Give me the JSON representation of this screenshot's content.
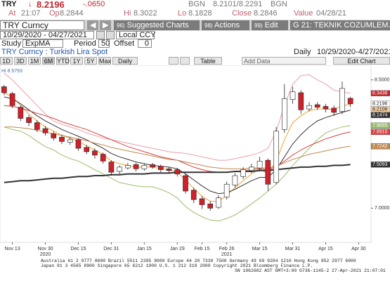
{
  "quote": {
    "ticker": "TRY",
    "last": "8.2196",
    "change": "-.0650",
    "bid_source": "BGN",
    "bid_ask": "8.2101/8.2291",
    "ask_source": "BGN",
    "time_label": "At",
    "time": "21:07",
    "open_label": "Op",
    "open": "8.2844",
    "high_label": "Hi",
    "high": "8.3022",
    "low_label": "Lo",
    "low": "8.1828",
    "close_label": "Close",
    "close": "8.2846",
    "value_label": "Value",
    "value_date": "04/28/21"
  },
  "toolbar": {
    "security": "TRY Curncy",
    "suggested": "Suggested Charts",
    "suggested_key": "96)",
    "actions": "Actions",
    "actions_key": "98)",
    "edit": "Edit",
    "edit_key": "99)",
    "launchpad": "G 21: TEKNIK COZUMLEM..."
  },
  "range": {
    "dates": "10/29/2020 - 04/27/2021",
    "currency": "Local CCY"
  },
  "study": {
    "label": "Study",
    "name": "ExpMA",
    "period_label": "Period",
    "period": "50",
    "offset_label": "Offset",
    "offset": "0"
  },
  "chart_header": {
    "title": "TRY Curncy : Turkish Lira Spot",
    "frequency": "Daily",
    "span": "10/29/2020-4/27/2021"
  },
  "buttons": [
    "1D",
    "3D",
    "1M",
    "6M",
    "YTD",
    "1Y",
    "5Y",
    "Max",
    "Daily"
  ],
  "tools": {
    "table": "Table",
    "add_data": "Add Data",
    "edit_chart": "Edit Chart"
  },
  "footer": [
    "Australia 61 2 9777 8600 Brazil 5511 2395 9000 Europe 44 20 7330 7500 Germany 49 69 9204 1210 Hong Kong 852 2977 6000",
    "Japan 81 3 4565 8900      Singapore 65 6212 1000      U.S. 1 212 318 2000      Copyright 2021 Bloomberg Finance L.P.",
    "SN 1062682 AST  GMT+3:00 G736-1145-2 27-Apr-2021 21:07:01"
  ],
  "chart_data": {
    "type": "candlestick",
    "annotation": "Hi 8.5793",
    "categories": [
      null,
      "Nov 13",
      null,
      null,
      null,
      "Nov 30",
      null,
      null,
      null,
      "Dec 15",
      null,
      null,
      null,
      "Dec 31",
      null,
      null,
      null,
      "Jan 15",
      null,
      null,
      null,
      "Jan 29",
      null,
      null,
      "Feb 15",
      null,
      null,
      "Feb 26",
      null,
      null,
      null,
      "Mar 15",
      null,
      null,
      null,
      "Mar 31",
      null,
      null,
      null,
      "Apr 15",
      null,
      null,
      null,
      "Apr 30",
      null
    ],
    "year_labels": [
      null,
      null,
      null,
      null,
      null,
      "2020",
      null,
      null,
      null,
      null,
      null,
      null,
      null,
      null,
      null,
      null,
      null,
      null,
      null,
      null,
      null,
      null,
      null,
      null,
      null,
      null,
      null,
      "2021",
      null,
      null,
      null,
      null,
      null,
      null,
      null,
      null,
      null,
      null,
      null,
      null,
      null,
      null,
      null,
      null,
      null
    ],
    "open": [
      8.42,
      8.34,
      8.18,
      8.06,
      8.0,
      7.93,
      7.87,
      7.83,
      7.77,
      7.8,
      7.71,
      7.67,
      7.63,
      7.54,
      7.43,
      7.47,
      7.51,
      7.46,
      7.51,
      7.49,
      7.46,
      7.45,
      7.38,
      7.21,
      7.11,
      7.05,
      7.01,
      7.13,
      7.27,
      7.37,
      7.44,
      7.47,
      7.56,
      7.3,
      7.92,
      8.27,
      8.35,
      8.16,
      8.21,
      8.19,
      8.17,
      8.13,
      8.2844,
      null,
      null
    ],
    "high": [
      8.44,
      8.36,
      8.2,
      8.09,
      8.03,
      7.96,
      7.9,
      7.86,
      7.83,
      7.82,
      7.74,
      7.7,
      7.65,
      7.56,
      7.5,
      7.53,
      7.53,
      7.52,
      7.53,
      7.51,
      7.48,
      7.47,
      7.4,
      7.24,
      7.14,
      7.08,
      7.15,
      7.31,
      7.41,
      7.48,
      7.52,
      7.6,
      7.58,
      7.95,
      8.45,
      8.42,
      8.38,
      8.24,
      8.24,
      8.22,
      8.2,
      8.48,
      8.3022,
      null,
      null
    ],
    "low": [
      8.32,
      8.17,
      8.02,
      7.96,
      7.89,
      7.85,
      7.79,
      7.75,
      7.74,
      7.67,
      7.63,
      7.58,
      7.52,
      7.38,
      7.4,
      7.45,
      7.43,
      7.44,
      7.46,
      7.42,
      7.41,
      7.37,
      7.17,
      7.06,
      6.99,
      6.97,
      6.99,
      7.1,
      7.24,
      7.34,
      7.41,
      7.44,
      7.2,
      7.28,
      7.88,
      8.22,
      8.1,
      8.13,
      8.15,
      8.12,
      8.08,
      8.1,
      8.1828,
      null,
      null
    ],
    "close": [
      8.35,
      8.2,
      8.05,
      8.0,
      7.92,
      7.88,
      7.82,
      7.78,
      7.8,
      7.7,
      7.66,
      7.62,
      7.55,
      7.42,
      7.48,
      7.5,
      7.46,
      7.5,
      7.48,
      7.45,
      7.44,
      7.4,
      7.2,
      7.1,
      7.04,
      7.0,
      7.12,
      7.28,
      7.38,
      7.45,
      7.48,
      7.55,
      7.28,
      7.9,
      8.28,
      8.36,
      8.15,
      8.2,
      8.18,
      8.16,
      8.12,
      8.4,
      8.2196,
      null,
      null
    ],
    "up_color": "#ffffff",
    "down_color": "#d0202a",
    "outline_color": "#222222",
    "lines": [
      {
        "color": "#e8a0a8",
        "width": 1,
        "values": [
          8.58,
          8.5,
          8.4,
          8.3,
          8.2,
          8.1,
          8.02,
          7.98,
          7.95,
          7.92,
          7.88,
          7.85,
          7.82,
          7.8,
          7.78,
          7.76,
          7.74,
          7.72,
          7.7,
          7.68,
          7.66,
          7.65,
          7.64,
          7.62,
          7.6,
          7.58,
          7.56,
          7.56,
          7.58,
          7.6,
          7.62,
          7.65,
          7.7,
          7.9,
          8.2,
          8.45,
          8.55,
          8.56,
          8.5,
          8.45,
          8.38,
          8.36,
          8.3438,
          null,
          null
        ]
      },
      {
        "color": "#9bbd6a",
        "width": 1,
        "values": [
          7.95,
          7.92,
          7.9,
          7.85,
          7.78,
          7.72,
          7.68,
          7.62,
          7.58,
          7.55,
          7.5,
          7.45,
          7.4,
          7.35,
          7.3,
          7.28,
          7.26,
          7.25,
          7.25,
          7.22,
          7.18,
          7.12,
          7.02,
          6.95,
          6.9,
          6.86,
          6.85,
          6.88,
          6.92,
          6.98,
          7.05,
          7.12,
          7.2,
          7.28,
          7.38,
          7.5,
          7.6,
          7.7,
          7.8,
          7.88,
          7.92,
          7.95,
          7.9655,
          null,
          null
        ]
      },
      {
        "color": "#f0a030",
        "width": 1,
        "values": [
          8.35,
          8.3,
          8.2,
          8.1,
          8.02,
          7.95,
          7.9,
          7.85,
          7.82,
          7.78,
          7.73,
          7.68,
          7.63,
          7.55,
          7.52,
          7.5,
          7.48,
          7.48,
          7.48,
          7.46,
          7.45,
          7.42,
          7.33,
          7.23,
          7.14,
          7.08,
          7.08,
          7.15,
          7.24,
          7.32,
          7.4,
          7.46,
          7.4,
          7.55,
          7.8,
          8.0,
          8.08,
          8.14,
          8.16,
          8.16,
          8.15,
          8.2,
          8.2106,
          null,
          null
        ]
      },
      {
        "color": "#333333",
        "width": 1,
        "values": [
          8.3,
          8.28,
          8.22,
          8.15,
          8.08,
          8.02,
          7.97,
          7.92,
          7.88,
          7.84,
          7.8,
          7.75,
          7.7,
          7.64,
          7.6,
          7.57,
          7.54,
          7.52,
          7.5,
          7.49,
          7.48,
          7.46,
          7.4,
          7.33,
          7.26,
          7.2,
          7.17,
          7.18,
          7.22,
          7.27,
          7.32,
          7.36,
          7.36,
          7.45,
          7.6,
          7.75,
          7.86,
          7.95,
          8.02,
          8.06,
          8.09,
          8.12,
          8.1474,
          null,
          null
        ]
      },
      {
        "color": "#d84040",
        "width": 1,
        "values": [
          8.2,
          8.19,
          8.17,
          8.14,
          8.11,
          8.08,
          8.05,
          8.01,
          7.98,
          7.95,
          7.92,
          7.88,
          7.84,
          7.8,
          7.76,
          7.72,
          7.69,
          7.66,
          7.63,
          7.6,
          7.58,
          7.56,
          7.52,
          7.48,
          7.45,
          7.43,
          7.42,
          7.42,
          7.43,
          7.44,
          7.45,
          7.46,
          7.45,
          7.48,
          7.55,
          7.62,
          7.68,
          7.73,
          7.77,
          7.81,
          7.84,
          7.87,
          7.891,
          null,
          null
        ]
      },
      {
        "color": "#c08850",
        "width": 1,
        "values": [
          7.95,
          7.95,
          7.94,
          7.93,
          7.91,
          7.89,
          7.87,
          7.85,
          7.83,
          7.81,
          7.79,
          7.76,
          7.74,
          7.71,
          7.69,
          7.67,
          7.65,
          7.63,
          7.61,
          7.59,
          7.57,
          7.56,
          7.54,
          7.52,
          7.5,
          7.48,
          7.47,
          7.46,
          7.46,
          7.46,
          7.47,
          7.47,
          7.47,
          7.49,
          7.53,
          7.57,
          7.6,
          7.63,
          7.65,
          7.67,
          7.69,
          7.71,
          7.7242,
          null,
          null
        ]
      },
      {
        "color": "#333333",
        "width": 2,
        "values": [
          7.3,
          7.31,
          7.32,
          7.32,
          7.33,
          7.34,
          7.35,
          7.35,
          7.36,
          7.37,
          7.37,
          7.38,
          7.38,
          7.39,
          7.39,
          7.4,
          7.4,
          7.4,
          7.41,
          7.41,
          7.41,
          7.42,
          7.42,
          7.42,
          7.42,
          7.42,
          7.42,
          7.42,
          7.43,
          7.43,
          7.43,
          7.44,
          7.44,
          7.45,
          7.46,
          7.47,
          7.48,
          7.48,
          7.49,
          7.49,
          7.5,
          7.5,
          7.5093,
          null,
          null
        ]
      }
    ],
    "price_tags": [
      {
        "value": 8.3438,
        "label": "8.3438",
        "color": "#c0282d",
        "text_color": "#ffffff"
      },
      {
        "value": 8.2196,
        "label": "8.2196",
        "color": "#ffffff",
        "text_color": "#222222"
      },
      {
        "value": 8.2106,
        "label": "8.2106",
        "color": "#f6d0a0",
        "text_color": "#222222"
      },
      {
        "value": 8.1474,
        "label": "8.1474",
        "color": "#333333",
        "text_color": "#ffffff"
      },
      {
        "value": 7.9655,
        "label": "7.9655",
        "color": "#9bbd6a",
        "text_color": "#ffffff"
      },
      {
        "value": 7.891,
        "label": "7.8910",
        "color": "#d84040",
        "text_color": "#ffffff"
      },
      {
        "value": 7.7242,
        "label": "7.7242",
        "color": "#c08850",
        "text_color": "#ffffff"
      },
      {
        "value": 7.5093,
        "label": "7.5093",
        "color": "#333333",
        "text_color": "#ffffff"
      }
    ],
    "ylim": [
      6.6,
      8.67
    ],
    "yticks": [
      {
        "value": 8.5,
        "label": "8.5000"
      },
      {
        "value": 7,
        "label": "7.0000"
      }
    ]
  }
}
